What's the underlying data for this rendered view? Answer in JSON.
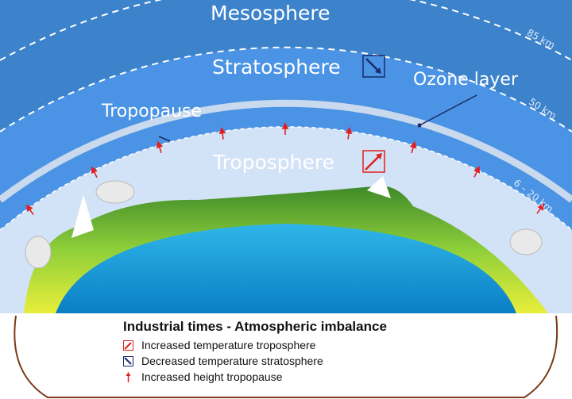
{
  "layers": {
    "mesosphere": "Mesosphere",
    "stratosphere": "Stratosphere",
    "ozone": "Ozone layer",
    "tropopause": "Tropopause",
    "troposphere": "Troposphere"
  },
  "altitudes": {
    "top": "85 km",
    "strato": "50 km",
    "tropo": "6 – 20 km"
  },
  "legend": {
    "title": "Industrial times - Atmospheric imbalance",
    "items": [
      {
        "icon": "red-up-right-arrow-box",
        "label": "Increased temperature troposphere"
      },
      {
        "icon": "navy-down-right-arrow-box",
        "label": "Decreased temperature stratosphere"
      },
      {
        "icon": "red-up-arrow",
        "label": "Increased height tropopause"
      }
    ]
  },
  "colors": {
    "mesosphere": "#3c83cc",
    "stratosphere": "#4b93e4",
    "troposphere": "#d2e2f7",
    "ocean": "#1b9ddc",
    "land": "#6fbf3a",
    "increase": "#e02020",
    "decrease": "#1a2a6a",
    "frame": "#7a3a1a"
  }
}
